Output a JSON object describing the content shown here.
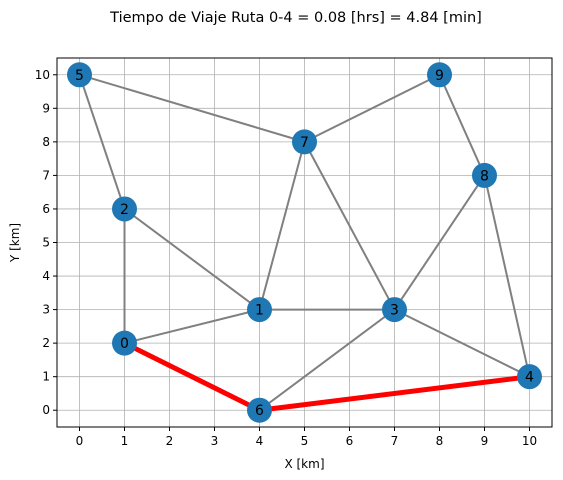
{
  "chart_data": {
    "type": "network",
    "title": "Tiempo de Viaje Ruta 0-4 = 0.08 [hrs] = 4.84 [min]",
    "xlabel": "X [km]",
    "ylabel": "Y [km]",
    "xlim": [
      -0.5,
      10.5
    ],
    "ylim": [
      -0.5,
      10.5
    ],
    "xticks": [
      0,
      1,
      2,
      3,
      4,
      5,
      6,
      7,
      8,
      9,
      10
    ],
    "yticks": [
      0,
      1,
      2,
      3,
      4,
      5,
      6,
      7,
      8,
      9,
      10
    ],
    "grid": true,
    "nodes": [
      {
        "id": "0",
        "x": 1,
        "y": 2
      },
      {
        "id": "1",
        "x": 4,
        "y": 3
      },
      {
        "id": "2",
        "x": 1,
        "y": 6
      },
      {
        "id": "3",
        "x": 7,
        "y": 3
      },
      {
        "id": "4",
        "x": 10,
        "y": 1
      },
      {
        "id": "5",
        "x": 0,
        "y": 10
      },
      {
        "id": "6",
        "x": 4,
        "y": 0
      },
      {
        "id": "7",
        "x": 5,
        "y": 8
      },
      {
        "id": "8",
        "x": 9,
        "y": 7
      },
      {
        "id": "9",
        "x": 8,
        "y": 10
      }
    ],
    "edges": [
      [
        "5",
        "2"
      ],
      [
        "5",
        "7"
      ],
      [
        "7",
        "9"
      ],
      [
        "9",
        "8"
      ],
      [
        "2",
        "0"
      ],
      [
        "2",
        "1"
      ],
      [
        "0",
        "1"
      ],
      [
        "1",
        "7"
      ],
      [
        "1",
        "3"
      ],
      [
        "7",
        "3"
      ],
      [
        "8",
        "3"
      ],
      [
        "8",
        "4"
      ],
      [
        "3",
        "4"
      ],
      [
        "3",
        "6"
      ],
      [
        "0",
        "6"
      ],
      [
        "6",
        "4"
      ]
    ],
    "highlighted_path": [
      "0",
      "6",
      "4"
    ],
    "colors": {
      "edge": "#808080",
      "path": "#ff0000",
      "node": "#1f77b4",
      "grid": "#b0b0b0",
      "axis": "#000000"
    }
  }
}
